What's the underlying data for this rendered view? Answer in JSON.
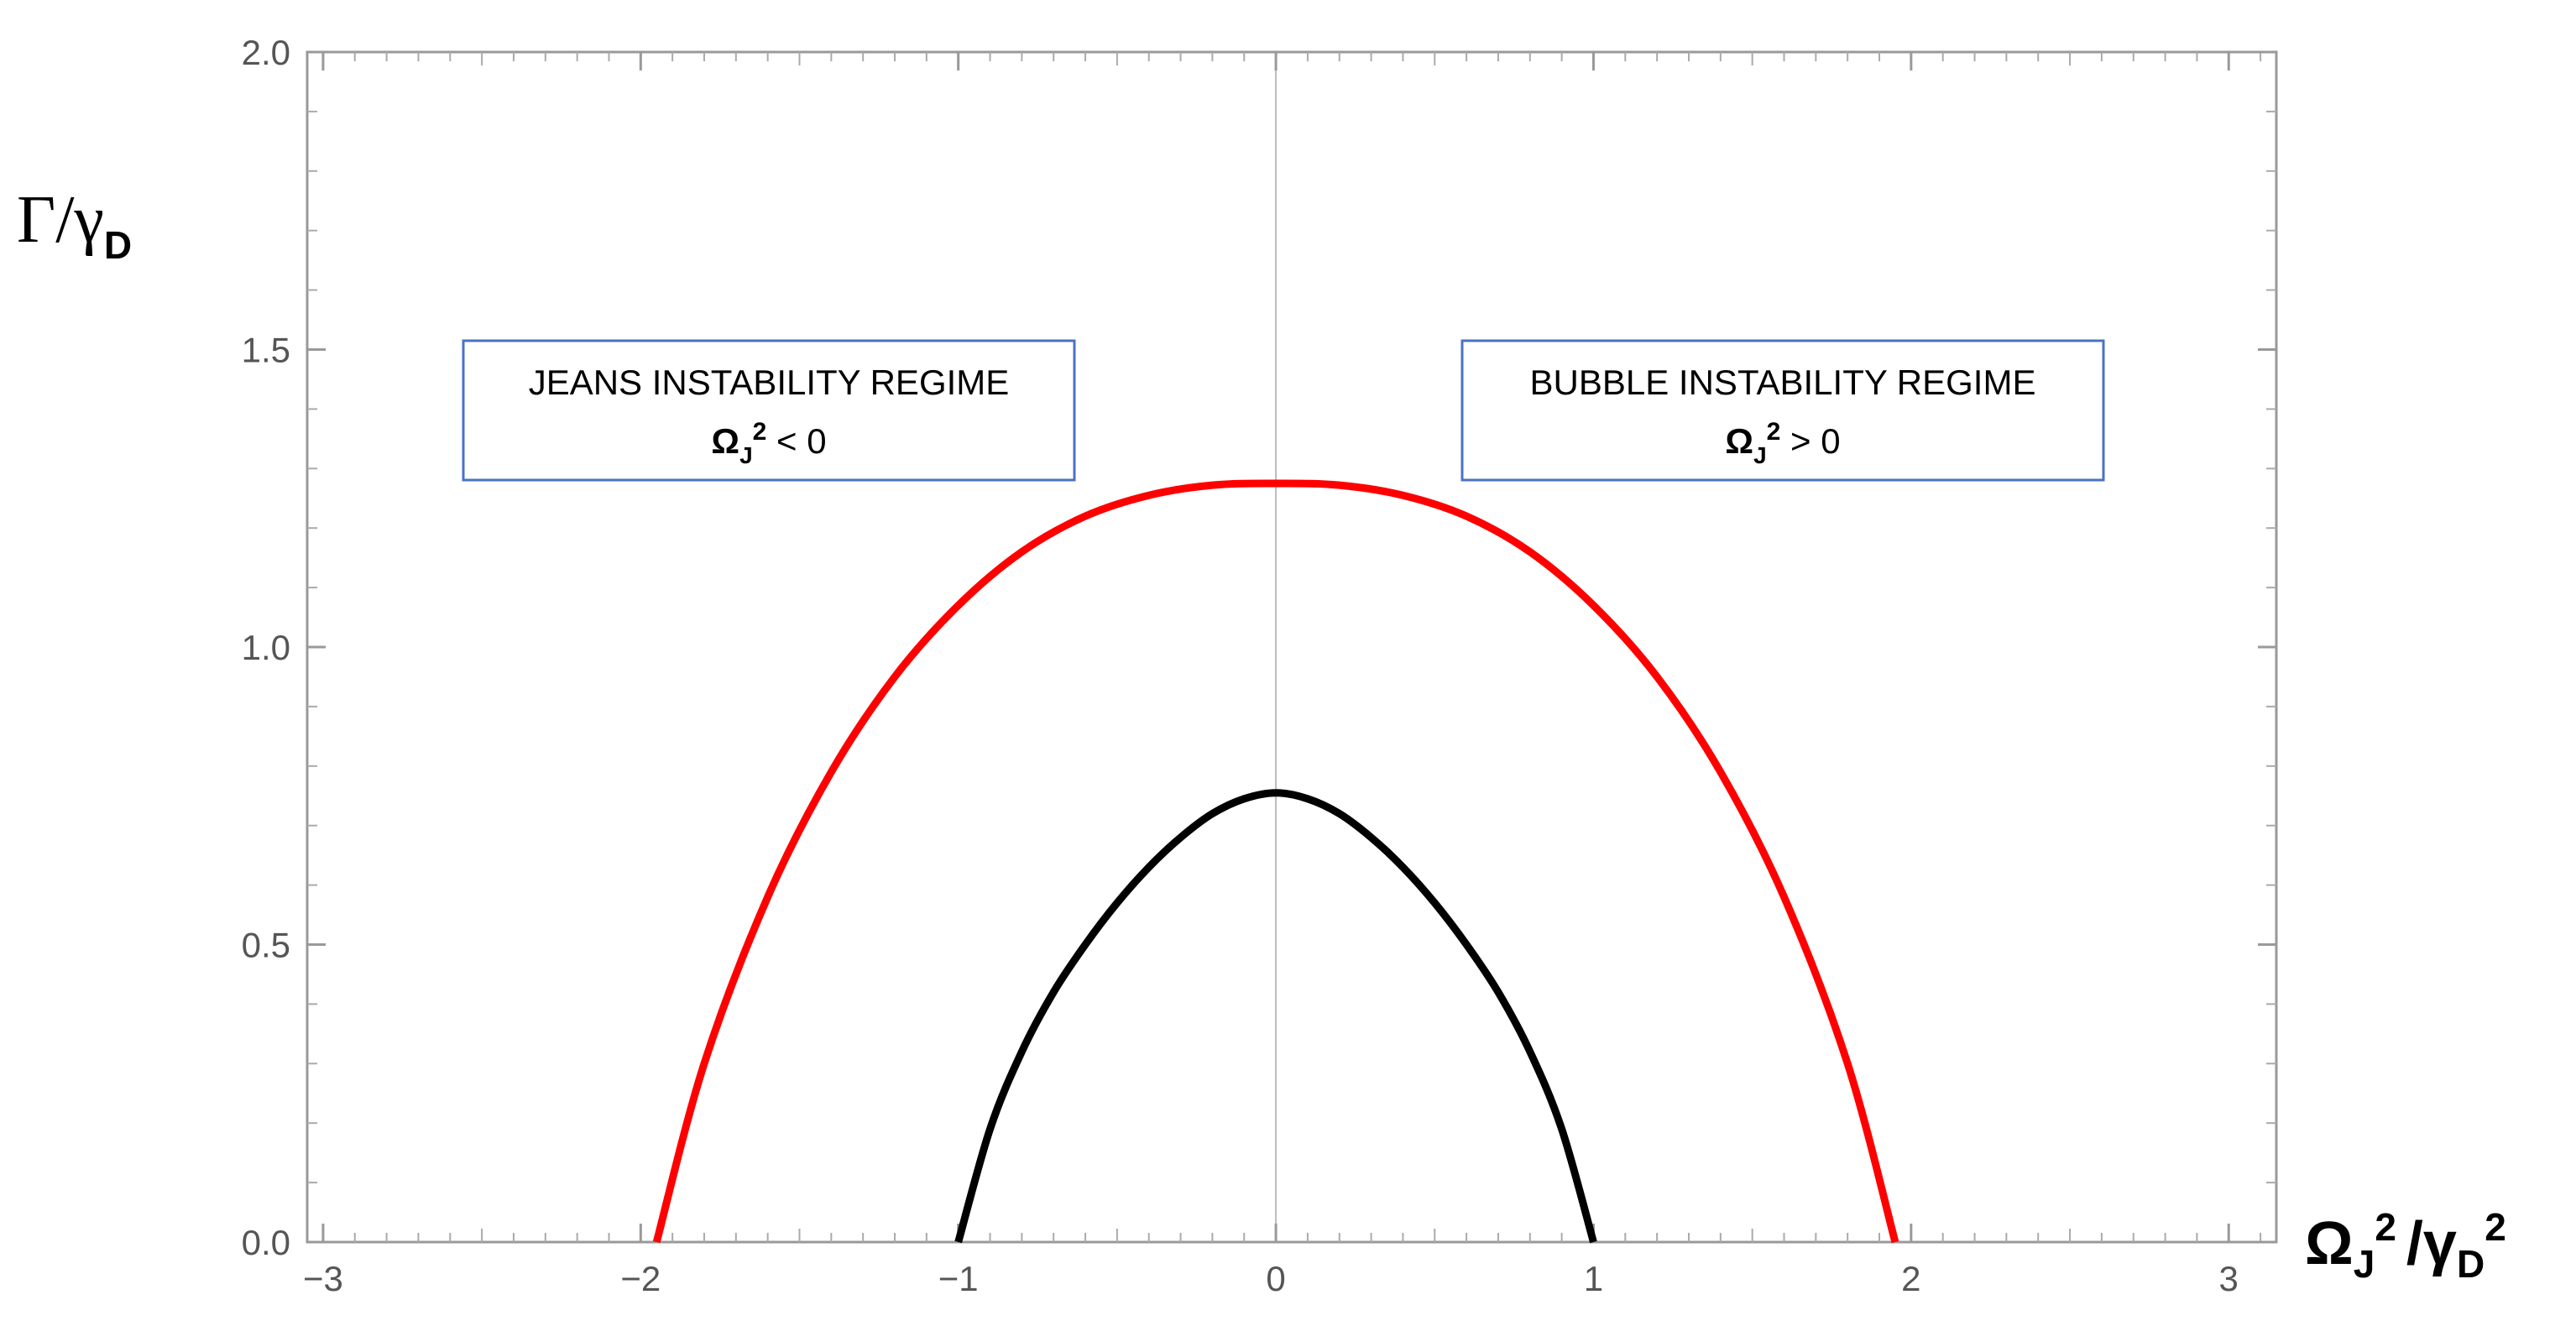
{
  "chart_data": {
    "type": "line",
    "title": "",
    "ylabel": {
      "main": "Γ/γ",
      "sub": "D"
    },
    "xlabel": {
      "part1": "Ω",
      "sub1": "J",
      "sup1": "2",
      "part2": "/γ",
      "sub2": "D",
      "sup2": "2"
    },
    "xlim": [
      -3.05,
      3.15
    ],
    "ylim": [
      0,
      2.0
    ],
    "x_ticks": [
      -3,
      -2,
      -1,
      0,
      1,
      2,
      3
    ],
    "x_tick_labels": [
      "−3",
      "−2",
      "−1",
      "0",
      "1",
      "2",
      "3"
    ],
    "y_ticks": [
      0,
      0.5,
      1.0,
      1.5,
      2.0
    ],
    "y_tick_labels": [
      "0.0",
      "0.5",
      "1.0",
      "1.5",
      "2.0"
    ],
    "grid": false,
    "series": [
      {
        "color": "#ff0000",
        "x": [
          -1.95,
          -1.8,
          -1.6,
          -1.4,
          -1.2,
          -1.0,
          -0.8,
          -0.6,
          -0.4,
          -0.2,
          0,
          0.2,
          0.4,
          0.6,
          0.8,
          1.0,
          1.2,
          1.4,
          1.6,
          1.8,
          1.95
        ],
        "y": [
          0.0,
          0.3,
          0.58,
          0.79,
          0.95,
          1.07,
          1.16,
          1.22,
          1.255,
          1.272,
          1.275,
          1.272,
          1.255,
          1.22,
          1.16,
          1.07,
          0.95,
          0.79,
          0.58,
          0.3,
          0.0
        ]
      },
      {
        "color": "#000000",
        "x": [
          -1.0,
          -0.9,
          -0.8,
          -0.7,
          -0.6,
          -0.5,
          -0.4,
          -0.3,
          -0.2,
          -0.1,
          0,
          0.1,
          0.2,
          0.3,
          0.4,
          0.5,
          0.6,
          0.7,
          0.8,
          0.9,
          1.0
        ],
        "y": [
          0.0,
          0.19,
          0.32,
          0.42,
          0.5,
          0.57,
          0.63,
          0.68,
          0.72,
          0.745,
          0.755,
          0.745,
          0.72,
          0.68,
          0.63,
          0.57,
          0.5,
          0.42,
          0.32,
          0.19,
          0.0
        ]
      }
    ],
    "annotations": [
      {
        "line1": "JEANS INSTABILITY REGIME",
        "sym": "Ω",
        "sub": "J",
        "sup": "2",
        "rel": " < 0"
      },
      {
        "line1": "BUBBLE INSTABILITY REGIME",
        "sym": "Ω",
        "sub": "J",
        "sup": "2",
        "rel": " > 0"
      }
    ],
    "colors": {
      "frame": "#999999",
      "zero_line": "#bbbbbb",
      "box_border": "#4a72c4"
    }
  }
}
